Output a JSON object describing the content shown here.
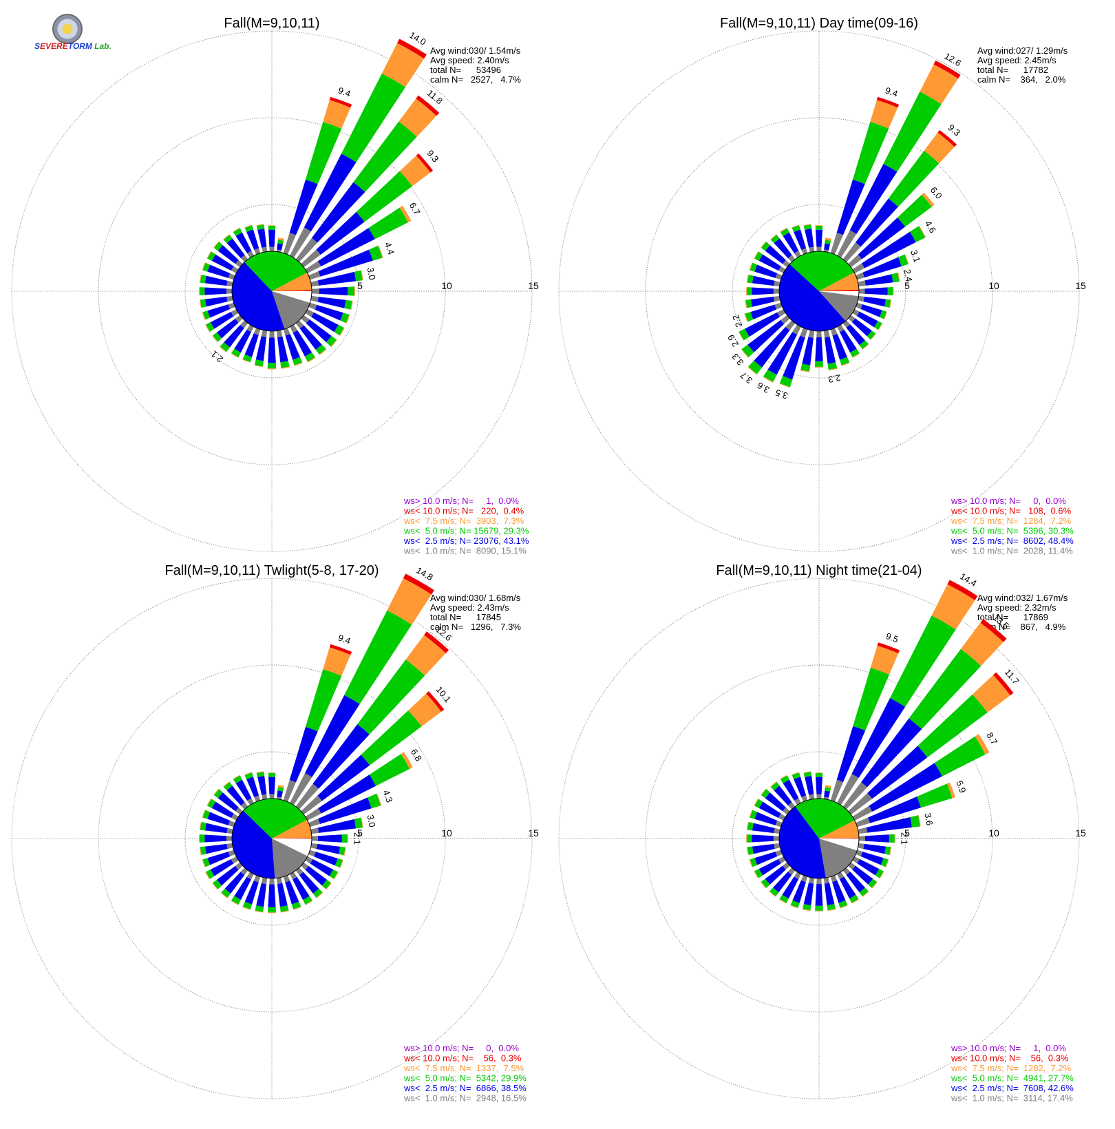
{
  "colors": {
    "gray": "#808080",
    "blue": "#0000ee",
    "green": "#00cc00",
    "orange": "#ff9933",
    "red": "#ee0000",
    "purple": "#9900cc"
  },
  "logo": {
    "s": "S",
    "text1": "EVERE",
    "text2": "TORM",
    "lab": "Lab."
  },
  "chart_data": [
    {
      "type": "windrose",
      "title": "Fall(M=9,10,11)",
      "stats": [
        "Avg wind:030/ 1.54m/s",
        "Avg speed: 2.40m/s",
        "total N=      53496",
        "calm N=   2527,   4.7%"
      ],
      "ring_labels": [
        "5",
        "10",
        "15"
      ],
      "rmax": 15,
      "legend": [
        "ws> 10.0 m/s; N=     1,  0.0%",
        "ws< 10.0 m/s; N=   220,  0.4%",
        "ws<  7.5 m/s; N=  3903,  7.3%",
        "ws<  5.0 m/s; N= 15679, 29.3%",
        "ws<  2.5 m/s; N= 23076, 43.1%",
        "ws<  1.0 m/s; N=  8090, 15.1%"
      ],
      "pie": [
        4.7,
        15.1,
        43.1,
        29.3,
        7.3,
        0.4
      ],
      "petals": [
        {
          "dir": 10,
          "total": 0.8
        },
        {
          "dir": 20,
          "total": 9.4,
          "labeled": true
        },
        {
          "dir": 30,
          "total": 14.0,
          "labeled": true
        },
        {
          "dir": 40,
          "total": 11.8,
          "labeled": true
        },
        {
          "dir": 50,
          "total": 9.3,
          "labeled": true
        },
        {
          "dir": 60,
          "total": 6.7,
          "labeled": true
        },
        {
          "dir": 70,
          "total": 4.4,
          "labeled": true
        },
        {
          "dir": 80,
          "total": 3.0,
          "labeled": true
        },
        {
          "dir": 90,
          "total": 2.5
        },
        {
          "dir": 100,
          "total": 2.4
        },
        {
          "dir": 110,
          "total": 2.4
        },
        {
          "dir": 120,
          "total": 2.4
        },
        {
          "dir": 130,
          "total": 2.4
        },
        {
          "dir": 140,
          "total": 2.3
        },
        {
          "dir": 150,
          "total": 2.3
        },
        {
          "dir": 160,
          "total": 2.2
        },
        {
          "dir": 170,
          "total": 2.2
        },
        {
          "dir": 180,
          "total": 2.2
        },
        {
          "dir": 190,
          "total": 2.1
        },
        {
          "dir": 200,
          "total": 2.0
        },
        {
          "dir": 210,
          "total": 2.0
        },
        {
          "dir": 220,
          "total": 2.1,
          "labeled": true
        },
        {
          "dir": 230,
          "total": 2.0
        },
        {
          "dir": 240,
          "total": 2.0
        },
        {
          "dir": 250,
          "total": 1.9
        },
        {
          "dir": 260,
          "total": 1.9
        },
        {
          "dir": 270,
          "total": 1.9
        },
        {
          "dir": 280,
          "total": 1.9
        },
        {
          "dir": 290,
          "total": 1.9
        },
        {
          "dir": 300,
          "total": 1.9
        },
        {
          "dir": 310,
          "total": 1.9
        },
        {
          "dir": 320,
          "total": 1.8
        },
        {
          "dir": 330,
          "total": 1.8
        },
        {
          "dir": 340,
          "total": 1.7
        },
        {
          "dir": 350,
          "total": 1.6
        },
        {
          "dir": 360,
          "total": 1.5
        }
      ]
    },
    {
      "type": "windrose",
      "title": "Fall(M=9,10,11) Day time(09-16)",
      "stats": [
        "Avg wind:027/ 1.29m/s",
        "Avg speed: 2.45m/s",
        "total N=      17782",
        "calm N=    364,   2.0%"
      ],
      "ring_labels": [
        "5",
        "10",
        "15"
      ],
      "rmax": 15,
      "legend": [
        "ws> 10.0 m/s; N=     0,  0.0%",
        "ws< 10.0 m/s; N=   108,  0.6%",
        "ws<  7.5 m/s; N=  1284,  7.2%",
        "ws<  5.0 m/s; N=  5396, 30.3%",
        "ws<  2.5 m/s; N=  8602, 48.4%",
        "ws<  1.0 m/s; N=  2028, 11.4%"
      ],
      "pie": [
        2.0,
        11.4,
        48.4,
        30.3,
        7.2,
        0.6
      ],
      "petals": [
        {
          "dir": 10,
          "total": 0.8
        },
        {
          "dir": 20,
          "total": 9.4,
          "labeled": true
        },
        {
          "dir": 30,
          "total": 12.6,
          "labeled": true
        },
        {
          "dir": 40,
          "total": 9.3,
          "labeled": true
        },
        {
          "dir": 50,
          "total": 6.0,
          "labeled": true
        },
        {
          "dir": 60,
          "total": 4.6,
          "labeled": true
        },
        {
          "dir": 70,
          "total": 3.1,
          "labeled": true
        },
        {
          "dir": 80,
          "total": 2.4,
          "labeled": true
        },
        {
          "dir": 90,
          "total": 2.0
        },
        {
          "dir": 100,
          "total": 1.9
        },
        {
          "dir": 110,
          "total": 1.8
        },
        {
          "dir": 120,
          "total": 1.8
        },
        {
          "dir": 130,
          "total": 1.8
        },
        {
          "dir": 140,
          "total": 1.9
        },
        {
          "dir": 150,
          "total": 2.0
        },
        {
          "dir": 160,
          "total": 2.2
        },
        {
          "dir": 170,
          "total": 2.3,
          "labeled": true
        },
        {
          "dir": 180,
          "total": 2.1
        },
        {
          "dir": 190,
          "total": 2.4
        },
        {
          "dir": 200,
          "total": 3.5,
          "labeled": true
        },
        {
          "dir": 210,
          "total": 3.6,
          "labeled": true
        },
        {
          "dir": 220,
          "total": 3.7,
          "labeled": true
        },
        {
          "dir": 230,
          "total": 3.3,
          "labeled": true
        },
        {
          "dir": 240,
          "total": 2.9,
          "labeled": true
        },
        {
          "dir": 250,
          "total": 2.2,
          "labeled": true
        },
        {
          "dir": 260,
          "total": 2.0
        },
        {
          "dir": 270,
          "total": 1.9
        },
        {
          "dir": 280,
          "total": 1.9
        },
        {
          "dir": 290,
          "total": 1.9
        },
        {
          "dir": 300,
          "total": 1.9
        },
        {
          "dir": 310,
          "total": 1.9
        },
        {
          "dir": 320,
          "total": 1.8
        },
        {
          "dir": 330,
          "total": 1.8
        },
        {
          "dir": 340,
          "total": 1.7
        },
        {
          "dir": 350,
          "total": 1.6
        },
        {
          "dir": 360,
          "total": 1.5
        }
      ]
    },
    {
      "type": "windrose",
      "title": "Fall(M=9,10,11) Twlight(5-8, 17-20)",
      "stats": [
        "Avg wind:030/ 1.68m/s",
        "Avg speed: 2.43m/s",
        "total N=      17845",
        "calm N=   1296,   7.3%"
      ],
      "ring_labels": [
        "5",
        "10",
        "15"
      ],
      "rmax": 15,
      "legend": [
        "ws> 10.0 m/s; N=     0,  0.0%",
        "ws< 10.0 m/s; N=    56,  0.3%",
        "ws<  7.5 m/s; N=  1337,  7.5%",
        "ws<  5.0 m/s; N=  5342, 29.9%",
        "ws<  2.5 m/s; N=  6866, 38.5%",
        "ws<  1.0 m/s; N=  2948, 16.5%"
      ],
      "pie": [
        7.3,
        16.5,
        38.5,
        29.9,
        7.5,
        0.3
      ],
      "petals": [
        {
          "dir": 10,
          "total": 0.8
        },
        {
          "dir": 20,
          "total": 9.4,
          "labeled": true
        },
        {
          "dir": 30,
          "total": 14.8,
          "labeled": true
        },
        {
          "dir": 40,
          "total": 12.6,
          "labeled": true
        },
        {
          "dir": 50,
          "total": 10.1,
          "labeled": true
        },
        {
          "dir": 60,
          "total": 6.8,
          "labeled": true
        },
        {
          "dir": 70,
          "total": 4.3,
          "labeled": true
        },
        {
          "dir": 80,
          "total": 3.0,
          "labeled": true
        },
        {
          "dir": 90,
          "total": 2.1,
          "labeled": true
        },
        {
          "dir": 100,
          "total": 2.0
        },
        {
          "dir": 110,
          "total": 2.0
        },
        {
          "dir": 120,
          "total": 2.0
        },
        {
          "dir": 130,
          "total": 2.0
        },
        {
          "dir": 140,
          "total": 2.0
        },
        {
          "dir": 150,
          "total": 2.0
        },
        {
          "dir": 160,
          "total": 2.0
        },
        {
          "dir": 170,
          "total": 2.0
        },
        {
          "dir": 180,
          "total": 2.0
        },
        {
          "dir": 190,
          "total": 2.0
        },
        {
          "dir": 200,
          "total": 2.0
        },
        {
          "dir": 210,
          "total": 2.0
        },
        {
          "dir": 220,
          "total": 2.0
        },
        {
          "dir": 230,
          "total": 2.0
        },
        {
          "dir": 240,
          "total": 2.0
        },
        {
          "dir": 250,
          "total": 1.9
        },
        {
          "dir": 260,
          "total": 1.9
        },
        {
          "dir": 270,
          "total": 1.9
        },
        {
          "dir": 280,
          "total": 1.9
        },
        {
          "dir": 290,
          "total": 1.9
        },
        {
          "dir": 300,
          "total": 1.9
        },
        {
          "dir": 310,
          "total": 1.9
        },
        {
          "dir": 320,
          "total": 1.8
        },
        {
          "dir": 330,
          "total": 1.8
        },
        {
          "dir": 340,
          "total": 1.7
        },
        {
          "dir": 350,
          "total": 1.6
        },
        {
          "dir": 360,
          "total": 1.5
        }
      ]
    },
    {
      "type": "windrose",
      "title": "Fall(M=9,10,11) Night time(21-04)",
      "stats": [
        "Avg wind:032/ 1.67m/s",
        "Avg speed: 2.32m/s",
        "total N=      17869",
        "calm N=    867,   4.9%"
      ],
      "ring_labels": [
        "5",
        "10",
        "15"
      ],
      "rmax": 15,
      "legend": [
        "ws> 10.0 m/s; N=     1,  0.0%",
        "ws< 10.0 m/s; N=    56,  0.3%",
        "ws<  7.5 m/s; N=  1282,  7.2%",
        "ws<  5.0 m/s; N=  4941, 27.7%",
        "ws<  2.5 m/s; N=  7608, 42.6%",
        "ws<  1.0 m/s; N=  3114, 17.4%"
      ],
      "pie": [
        4.9,
        17.4,
        42.6,
        27.7,
        7.2,
        0.3
      ],
      "petals": [
        {
          "dir": 10,
          "total": 0.8
        },
        {
          "dir": 20,
          "total": 9.5,
          "labeled": true
        },
        {
          "dir": 30,
          "total": 14.4,
          "labeled": true
        },
        {
          "dir": 40,
          "total": 13.5,
          "labeled": true
        },
        {
          "dir": 50,
          "total": 11.7,
          "labeled": true
        },
        {
          "dir": 60,
          "total": 8.7,
          "labeled": true
        },
        {
          "dir": 70,
          "total": 5.9,
          "labeled": true
        },
        {
          "dir": 80,
          "total": 3.6,
          "labeled": true
        },
        {
          "dir": 90,
          "total": 2.1,
          "labeled": true
        },
        {
          "dir": 100,
          "total": 1.9
        },
        {
          "dir": 110,
          "total": 1.9
        },
        {
          "dir": 120,
          "total": 1.9
        },
        {
          "dir": 130,
          "total": 1.9
        },
        {
          "dir": 140,
          "total": 1.9
        },
        {
          "dir": 150,
          "total": 1.9
        },
        {
          "dir": 160,
          "total": 1.9
        },
        {
          "dir": 170,
          "total": 1.9
        },
        {
          "dir": 180,
          "total": 1.9
        },
        {
          "dir": 190,
          "total": 1.9
        },
        {
          "dir": 200,
          "total": 1.9
        },
        {
          "dir": 210,
          "total": 1.9
        },
        {
          "dir": 220,
          "total": 1.9
        },
        {
          "dir": 230,
          "total": 1.9
        },
        {
          "dir": 240,
          "total": 1.9
        },
        {
          "dir": 250,
          "total": 1.9
        },
        {
          "dir": 260,
          "total": 1.9
        },
        {
          "dir": 270,
          "total": 1.9
        },
        {
          "dir": 280,
          "total": 1.9
        },
        {
          "dir": 290,
          "total": 1.9
        },
        {
          "dir": 300,
          "total": 1.9
        },
        {
          "dir": 310,
          "total": 1.9
        },
        {
          "dir": 320,
          "total": 1.8
        },
        {
          "dir": 330,
          "total": 1.8
        },
        {
          "dir": 340,
          "total": 1.7
        },
        {
          "dir": 350,
          "total": 1.6
        },
        {
          "dir": 360,
          "total": 1.5
        }
      ]
    }
  ]
}
